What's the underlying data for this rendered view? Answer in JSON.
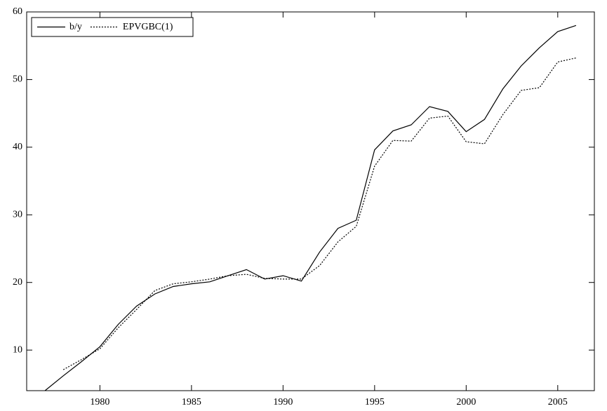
{
  "chart_data": {
    "type": "line",
    "x": [
      1977,
      1978,
      1979,
      1980,
      1981,
      1982,
      1983,
      1984,
      1985,
      1986,
      1987,
      1988,
      1989,
      1990,
      1991,
      1992,
      1993,
      1994,
      1995,
      1996,
      1997,
      1998,
      1999,
      2000,
      2001,
      2002,
      2003,
      2004,
      2005,
      2006
    ],
    "series": [
      {
        "name": "b/y",
        "color": "#000000",
        "dash": "solid",
        "values": [
          4.0,
          6.2,
          8.3,
          10.5,
          13.8,
          16.5,
          18.3,
          19.4,
          19.8,
          20.1,
          21.0,
          21.9,
          20.5,
          21.0,
          20.2,
          24.5,
          28.0,
          29.2,
          39.6,
          42.4,
          43.3,
          46.0,
          45.3,
          42.3,
          44.1,
          48.6,
          52.0,
          54.7,
          57.1,
          58.0
        ]
      },
      {
        "name": "EPVGBC(1)",
        "color": "#000000",
        "dash": "dotted",
        "values": [
          null,
          7.1,
          8.6,
          10.2,
          13.3,
          16.0,
          18.8,
          19.8,
          20.1,
          20.5,
          21.0,
          21.2,
          20.6,
          20.5,
          20.5,
          22.5,
          26.0,
          28.3,
          37.2,
          41.0,
          40.9,
          44.3,
          44.6,
          40.8,
          40.5,
          44.8,
          48.4,
          48.8,
          52.6,
          53.2
        ]
      }
    ],
    "xlim": [
      1976,
      2007
    ],
    "ylim": [
      4,
      60
    ],
    "xticks": [
      1980,
      1985,
      1990,
      1995,
      2000,
      2005
    ],
    "yticks": [
      10,
      20,
      30,
      40,
      50,
      60
    ],
    "legend": "top-left"
  }
}
